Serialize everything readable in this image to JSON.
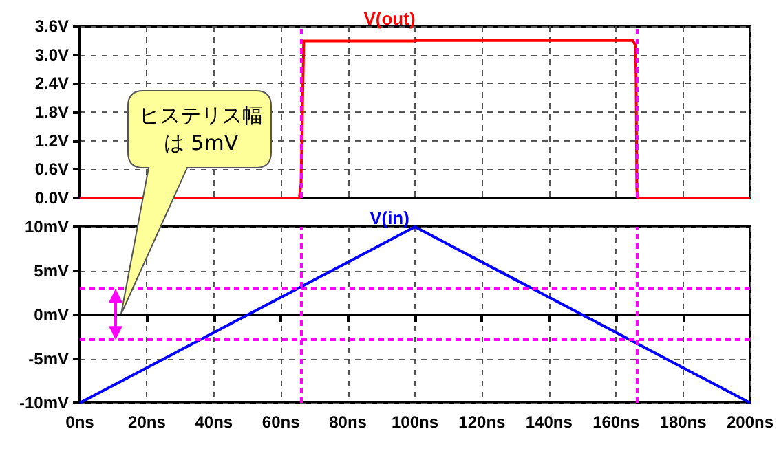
{
  "chart_data": [
    {
      "type": "line",
      "series": [
        {
          "name": "V(out)",
          "color": "#ff0000",
          "x": [
            0,
            65.5,
            66,
            66.3,
            66.8,
            100,
            100.5,
            165,
            165.8,
            166,
            166.2,
            166.5,
            200
          ],
          "values": [
            0,
            0,
            0.3,
            1.4,
            3.29,
            3.29,
            3.3,
            3.3,
            3.2,
            2.5,
            0.2,
            0,
            0
          ]
        }
      ],
      "xlim": [
        0,
        200
      ],
      "xticks": [
        0,
        20,
        40,
        60,
        80,
        100,
        120,
        140,
        160,
        180,
        200
      ],
      "ylim": [
        0,
        3.6
      ],
      "yticks": [
        {
          "value": 0,
          "label": "0.0V"
        },
        {
          "value": 0.6,
          "label": "0.6V"
        },
        {
          "value": 1.2,
          "label": "1.2V"
        },
        {
          "value": 1.8,
          "label": "1.8V"
        },
        {
          "value": 2.4,
          "label": "2.4V"
        },
        {
          "value": 3.0,
          "label": "3.0V"
        },
        {
          "value": 3.6,
          "label": "3.6V"
        }
      ],
      "grid": true,
      "tick_labels": "y",
      "marker": "none",
      "line_style": "solid",
      "ref_lines": [
        {
          "axis": "x",
          "value": 66.1,
          "color": "#ff00ff",
          "line_style": "dashed"
        },
        {
          "axis": "x",
          "value": 166.2,
          "color": "#ff00ff",
          "line_style": "dashed"
        }
      ]
    },
    {
      "type": "line",
      "series": [
        {
          "name": "V(in)",
          "color": "#0000ff",
          "x": [
            0,
            100,
            200
          ],
          "values": [
            -10,
            10,
            -10
          ]
        }
      ],
      "xlim": [
        0,
        200
      ],
      "xticks": [
        {
          "value": 0,
          "label": "0ns"
        },
        {
          "value": 20,
          "label": "20ns"
        },
        {
          "value": 40,
          "label": "40ns"
        },
        {
          "value": 60,
          "label": "60ns"
        },
        {
          "value": 80,
          "label": "80ns"
        },
        {
          "value": 100,
          "label": "100ns"
        },
        {
          "value": 120,
          "label": "120ns"
        },
        {
          "value": 140,
          "label": "140ns"
        },
        {
          "value": 160,
          "label": "160ns"
        },
        {
          "value": 180,
          "label": "180ns"
        },
        {
          "value": 200,
          "label": "200ns"
        }
      ],
      "ylim": [
        -10,
        10
      ],
      "yticks": [
        {
          "value": -10,
          "label": "-10mV"
        },
        {
          "value": -5,
          "label": "-5mV"
        },
        {
          "value": 0,
          "label": "0mV"
        },
        {
          "value": 5,
          "label": "5mV"
        },
        {
          "value": 10,
          "label": "10mV"
        }
      ],
      "grid": true,
      "marker": "none",
      "line_style": "solid",
      "ref_lines": [
        {
          "axis": "x",
          "value": 66.1,
          "color": "#ff00ff",
          "line_style": "dashed"
        },
        {
          "axis": "x",
          "value": 166.2,
          "color": "#ff00ff",
          "line_style": "dashed"
        },
        {
          "axis": "y",
          "value": 3.0,
          "color": "#ff00ff",
          "line_style": "dashed"
        },
        {
          "axis": "y",
          "value": -2.8,
          "color": "#ff00ff",
          "line_style": "dashed"
        }
      ],
      "annotations": [
        "ヒステリス幅は 5mV"
      ]
    }
  ]
}
